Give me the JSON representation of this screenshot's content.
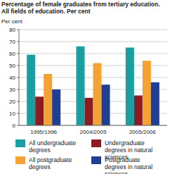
{
  "chart_data": {
    "type": "bar",
    "title": "Percentage of female graduates from tertiary education.",
    "subtitle": "All fields of education. Per cent",
    "y_label": "Per cent",
    "categories": [
      "1995/1996",
      "2004/2005",
      "2005/2006"
    ],
    "series": [
      {
        "name": "All undergraduate degrees",
        "color": "#1a9fa0",
        "values": [
          59,
          66,
          65
        ]
      },
      {
        "name": "Undergraduate degrees in natural sciences",
        "color": "#8b1c24",
        "values": [
          24,
          23,
          25
        ]
      },
      {
        "name": "All postgraduate degrees",
        "color": "#f4a233",
        "values": [
          43,
          52,
          54
        ]
      },
      {
        "name": "Postgraduate degrees in natural sciences",
        "color": "#1f3f93",
        "values": [
          30,
          34,
          36
        ]
      }
    ],
    "ylim": [
      0,
      80
    ],
    "yticks": [
      0,
      10,
      20,
      30,
      40,
      50,
      60,
      70,
      80
    ],
    "grid": true,
    "legend": "bottom"
  }
}
